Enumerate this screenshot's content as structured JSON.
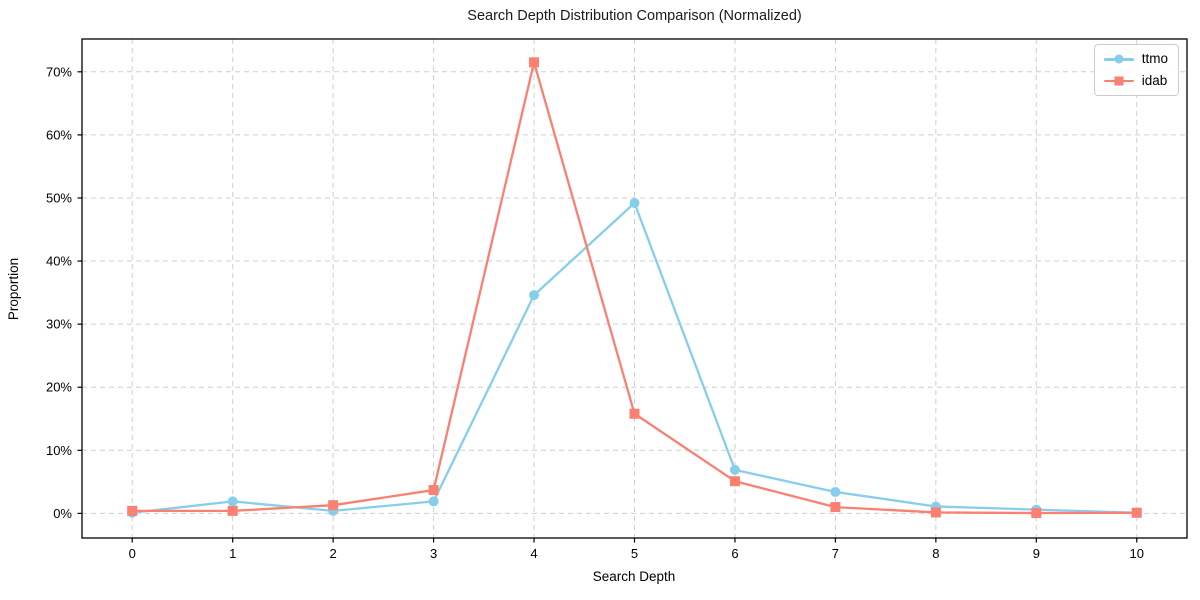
{
  "chart_data": {
    "type": "line",
    "title": "Search Depth Distribution Comparison (Normalized)",
    "xlabel": "Search Depth",
    "ylabel": "Proportion",
    "x": [
      0,
      1,
      2,
      3,
      4,
      5,
      6,
      7,
      8,
      9,
      10
    ],
    "series": [
      {
        "name": "ttmo",
        "color": "#87CEEB",
        "marker": "circle",
        "values": [
          0.1,
          1.9,
          0.4,
          1.9,
          34.6,
          49.2,
          6.9,
          3.4,
          1.1,
          0.6,
          0.1
        ]
      },
      {
        "name": "idab",
        "color": "#FA8072",
        "marker": "square",
        "values": [
          0.4,
          0.4,
          1.3,
          3.7,
          71.5,
          15.8,
          5.1,
          1.0,
          0.15,
          0.05,
          0.1
        ]
      }
    ],
    "y_ticks": [
      0,
      10,
      20,
      30,
      40,
      50,
      60,
      70
    ],
    "y_tick_suffix": "%",
    "xlim": [
      -0.5,
      10.5
    ],
    "ylim": [
      -3.9,
      75.2
    ],
    "grid": true,
    "grid_style": "dashed",
    "legend_position": "upper right",
    "colors": {
      "grid": "#cfcfcf",
      "spine": "#000000",
      "text": "#000000",
      "title": "#1a1a1a"
    }
  }
}
